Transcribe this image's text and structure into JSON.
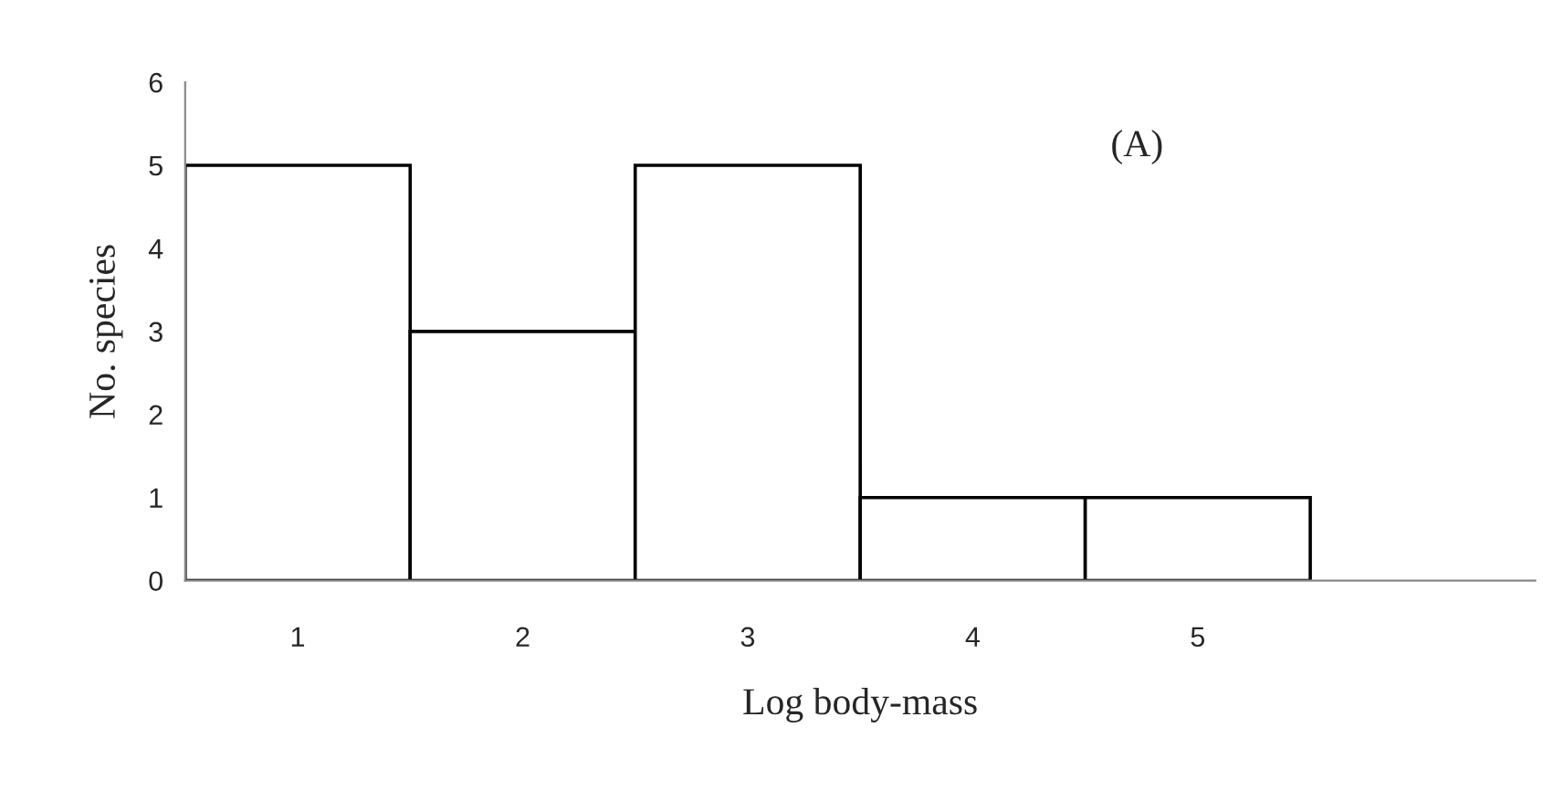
{
  "chart_data": {
    "type": "bar",
    "xlabel": "Log body-mass",
    "ylabel": "No. species",
    "categories": [
      "1",
      "2",
      "3",
      "4",
      "5",
      null
    ],
    "values": [
      5,
      3,
      5,
      1,
      1,
      null
    ],
    "color": "#ffffff",
    "ylim": [
      0,
      6
    ],
    "yticks": [
      0,
      1,
      2,
      3,
      4,
      5,
      6
    ],
    "grid": false,
    "legend": false,
    "annotations": [
      "(A)"
    ]
  }
}
